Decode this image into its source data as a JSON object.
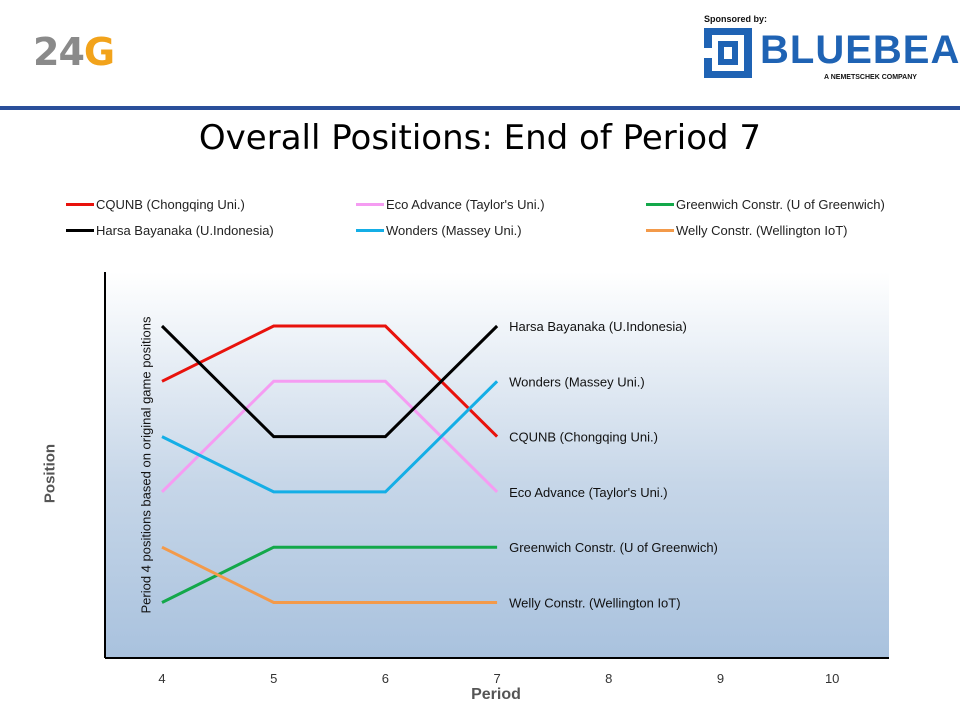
{
  "header": {
    "logo_number": "24",
    "logo_letter": "G",
    "sponsor_label": "Sponsored by:",
    "sponsor_name": "BLUEBEAM",
    "sponsor_tagline": "A NEMETSCHEK COMPANY"
  },
  "colors": {
    "header_rule": "#2a4f9a",
    "sponsor_blue": "#1f63b4",
    "logo_grey": "#8a8a8a",
    "logo_orange": "#f2a31b"
  },
  "chart_data": {
    "type": "line",
    "title": "Overall Positions: End of Period 7",
    "xlabel": "Period",
    "ylabel": "Position",
    "annotation": "Period 4 positions based on original game positions",
    "x": [
      4,
      5,
      6,
      7
    ],
    "x_ticks": [
      "4",
      "5",
      "6",
      "7",
      "8",
      "9",
      "10"
    ],
    "xlim": [
      4,
      10
    ],
    "ylim": [
      0.5,
      7
    ],
    "y_reversed": true,
    "grid": false,
    "legend_position": "top",
    "series": [
      {
        "name": "CQUNB (Chongqing Uni.)",
        "color": "#e8120c",
        "values": [
          2,
          1,
          1,
          3
        ],
        "end_label": "CQUNB (Chongqing Uni.)"
      },
      {
        "name": "Eco Advance (Taylor's Uni.)",
        "color": "#f59cf2",
        "values": [
          4,
          2,
          2,
          4
        ],
        "end_label": "Eco Advance (Taylor's Uni.)"
      },
      {
        "name": "Greenwich Constr. (U of Greenwich)",
        "color": "#13a84a",
        "values": [
          6,
          5,
          5,
          5
        ],
        "end_label": "Greenwich Constr. (U of Greenwich)"
      },
      {
        "name": "Harsa Bayanaka (U.Indonesia)",
        "color": "#000000",
        "values": [
          1,
          3,
          3,
          1
        ],
        "end_label": "Harsa Bayanaka (U.Indonesia)"
      },
      {
        "name": "Wonders (Massey Uni.)",
        "color": "#14aee6",
        "values": [
          3,
          4,
          4,
          2
        ],
        "end_label": "Wonders  (Massey Uni.)"
      },
      {
        "name": "Welly Constr. (Wellington IoT)",
        "color": "#f39a4a",
        "values": [
          5,
          6,
          6,
          6
        ],
        "end_label": "Welly Constr. (Wellington IoT)"
      }
    ]
  }
}
